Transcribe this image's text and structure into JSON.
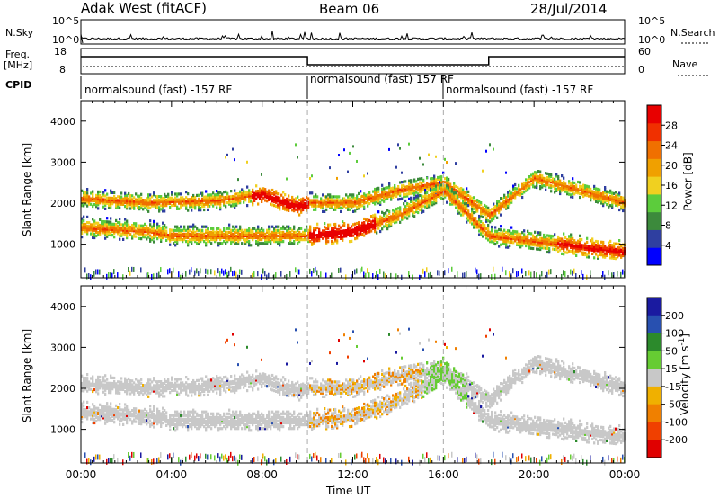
{
  "header": {
    "radar": "Adak West (fitACF)",
    "beam": "Beam 06",
    "date": "28/Jul/2014"
  },
  "top_panels": {
    "nsky_label": "N.Sky",
    "nsearch_label": "N.Search",
    "nsky_ticks": [
      "10^5",
      "10^0"
    ],
    "nsearch_ticks": [
      "10^5",
      "10^0"
    ],
    "freq_label": "Freq.",
    "freq_unit": "[MHz]",
    "freq_ticks": [
      "18",
      "8"
    ],
    "nave_label": "Nave",
    "nave_ticks": [
      "60",
      "0"
    ],
    "cpid_label": "CPID",
    "cpid_segments": [
      {
        "label": "normalsound (fast) -157 RF",
        "start": "00:00",
        "end": "10:00"
      },
      {
        "label": "normalsound (fast) 157 RF",
        "start": "10:00",
        "end": "16:00"
      },
      {
        "label": "normalsound (fast) -157 RF",
        "start": "16:00",
        "end": "24:00"
      }
    ]
  },
  "colors": {
    "power_scale": [
      "#0000ff",
      "#2f3fa0",
      "#3c8a3c",
      "#5ccc3c",
      "#f0d020",
      "#f0a000",
      "#f07000",
      "#f03000",
      "#e80000"
    ],
    "velocity_scale": [
      "#1a1aa0",
      "#2850b0",
      "#2c8a2c",
      "#66cc33",
      "#c8c8c8",
      "#f0b000",
      "#f08000",
      "#f04000",
      "#e00000"
    ],
    "boundary_line": "#aaaaaa"
  },
  "chart_data": [
    {
      "type": "heatmap",
      "panel": "power",
      "ylabel": "Slant Range [km]",
      "xlabel": "Time UT",
      "x_ticks": [
        "00:00",
        "04:00",
        "08:00",
        "12:00",
        "16:00",
        "20:00",
        "00:00"
      ],
      "y_ticks": [
        "1000",
        "2000",
        "3000",
        "4000"
      ],
      "ylim": [
        180,
        4500
      ],
      "xlim_hours": [
        0,
        24
      ],
      "colorbar": {
        "label": "Power [dB]",
        "ticks": [
          "4",
          "8",
          "12",
          "16",
          "20",
          "24",
          "28"
        ],
        "range": [
          0,
          32
        ]
      },
      "features": [
        {
          "name": "band-upper",
          "t": [
            0,
            3,
            6,
            8,
            9.5,
            10,
            12,
            14,
            16,
            18,
            20,
            24
          ],
          "range": [
            2100,
            2000,
            2050,
            2200,
            1900,
            2000,
            2000,
            2300,
            2500,
            1700,
            2600,
            2000
          ]
        },
        {
          "name": "band-lower",
          "t": [
            0,
            3,
            4,
            10,
            12,
            14,
            16,
            18,
            24
          ],
          "range": [
            1400,
            1300,
            1200,
            1200,
            1300,
            1700,
            2300,
            1200,
            800
          ]
        }
      ]
    },
    {
      "type": "heatmap",
      "panel": "velocity",
      "ylabel": "Slant Range [km]",
      "xlabel": "Time UT",
      "x_ticks": [
        "00:00",
        "04:00",
        "08:00",
        "12:00",
        "16:00",
        "20:00",
        "00:00"
      ],
      "y_ticks": [
        "1000",
        "2000",
        "3000",
        "4000"
      ],
      "ylim": [
        180,
        4500
      ],
      "colorbar": {
        "label": "Velocity [m s^-1]",
        "ticks": [
          "200",
          "100",
          "50",
          "15",
          "-15",
          "-50",
          "-100",
          "-200"
        ],
        "range": [
          -250,
          250
        ]
      }
    }
  ]
}
